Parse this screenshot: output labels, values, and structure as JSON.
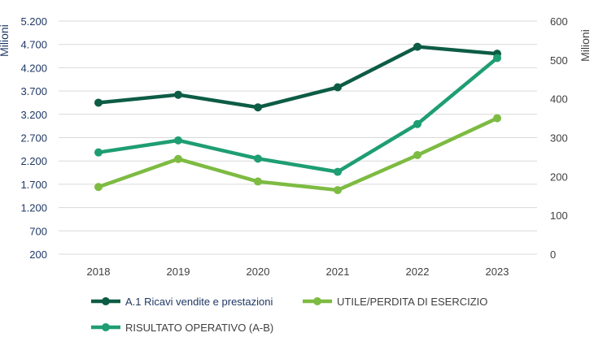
{
  "chart_data": {
    "type": "line",
    "categories": [
      "2018",
      "2019",
      "2020",
      "2021",
      "2022",
      "2023"
    ],
    "y_left": {
      "label": "Milioni",
      "ticks": [
        "200",
        "700",
        "1.200",
        "1.700",
        "2.200",
        "2.700",
        "3.200",
        "3.700",
        "4.200",
        "4.700",
        "5.200"
      ],
      "min": 200,
      "max": 5200
    },
    "y_right": {
      "label": "Milioni",
      "ticks": [
        "0",
        "100",
        "200",
        "300",
        "400",
        "500",
        "600"
      ],
      "min": 0,
      "max": 600
    },
    "grid": true,
    "legend_position": "bottom",
    "series": [
      {
        "name": "A.1 Ricavi vendite e prestazioni",
        "axis": "left",
        "color": "#0d5c45",
        "values": [
          3450,
          3620,
          3350,
          3780,
          4650,
          4500
        ]
      },
      {
        "name": "UTILE/PERDITA DI ESERCIZIO",
        "axis": "right",
        "color": "#7dbb42",
        "values": [
          173,
          245,
          187,
          165,
          255,
          350
        ]
      },
      {
        "name": "RISULTATO OPERATIVO (A-B)",
        "axis": "right",
        "color": "#1e9e72",
        "values": [
          262,
          293,
          246,
          212,
          335,
          505
        ]
      }
    ],
    "legend_colors": {
      "axis_left_text": "#1f3864",
      "axis_right_text": "#404040",
      "grid": "#d9d9d9"
    }
  }
}
